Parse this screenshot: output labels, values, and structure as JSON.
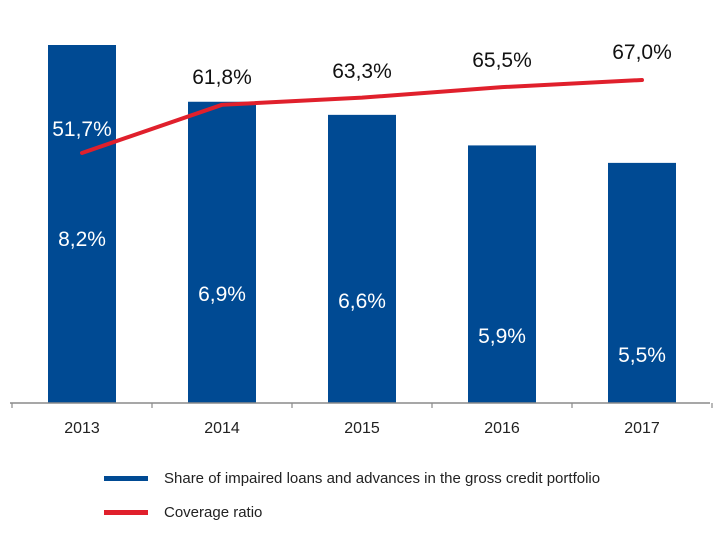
{
  "chart_data": {
    "type": "bar",
    "categories": [
      "2013",
      "2014",
      "2015",
      "2016",
      "2017"
    ],
    "series": [
      {
        "name": "Share of impaired loans and advances in the gross credit portfolio",
        "type": "bar",
        "values": [
          8.2,
          6.9,
          6.6,
          5.9,
          5.5
        ],
        "labels": [
          "8,2%",
          "6,9%",
          "6,6%",
          "5,9%",
          "5,5%"
        ],
        "color": "#004a93"
      },
      {
        "name": "Coverage ratio",
        "type": "line",
        "values": [
          51.7,
          61.8,
          63.3,
          65.5,
          67.0
        ],
        "labels": [
          "51,7%",
          "61,8%",
          "63,3%",
          "65,5%",
          "67,0%"
        ],
        "color": "#e0202c"
      }
    ],
    "grid": false,
    "legend_position": "bottom-left"
  }
}
